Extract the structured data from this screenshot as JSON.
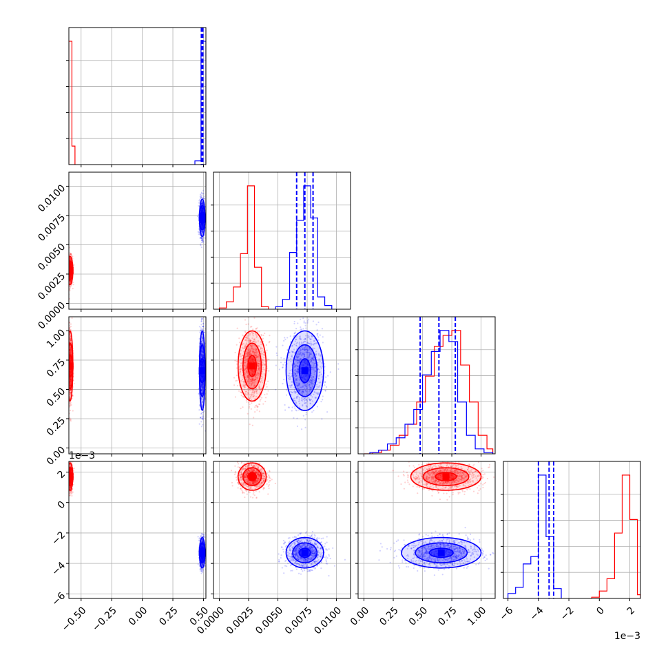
{
  "figure": {
    "type": "corner-plot",
    "description_colors": {
      "series_a": "#ff0000",
      "series_b": "#0000ff",
      "grid": "#b0b0b0",
      "frame": "#000000"
    }
  },
  "chart_data": {
    "type": "corner",
    "parameters": [
      {
        "id": "p0",
        "range": [
          -0.6,
          0.52
        ],
        "ticks": [
          -0.5,
          -0.25,
          0.0,
          0.25,
          0.5
        ],
        "tick_labels": [
          "−0.50",
          "−0.25",
          "0.00",
          "0.25",
          "0.50"
        ]
      },
      {
        "id": "p1",
        "range": [
          -0.0005,
          0.0112
        ],
        "ticks": [
          0.0,
          0.0025,
          0.005,
          0.0075,
          0.01
        ],
        "tick_labels": [
          "0.0000",
          "0.0025",
          "0.0050",
          "0.0075",
          "0.0100"
        ]
      },
      {
        "id": "p2",
        "range": [
          -0.05,
          1.12
        ],
        "ticks": [
          0.0,
          0.25,
          0.5,
          0.75,
          1.0
        ],
        "tick_labels": [
          "0.00",
          "0.25",
          "0.50",
          "0.75",
          "1.00"
        ]
      },
      {
        "id": "p3",
        "range": [
          -6.3,
          2.7
        ],
        "ticks": [
          -6,
          -4,
          -2,
          0,
          2
        ],
        "tick_labels": [
          "−6",
          "−4",
          "−2",
          "0",
          "2"
        ],
        "offset_text": "1e−3"
      }
    ],
    "series": [
      {
        "color": "#ff0000",
        "means": [
          -0.59,
          0.0028,
          0.7,
          1.7
        ],
        "stds": [
          0.01,
          0.0006,
          0.15,
          0.45
        ],
        "hist": [
          {
            "edges": [
              -0.6,
              -0.575,
              -0.55
            ],
            "counts": [
              1.0,
              0.15
            ]
          },
          {
            "edges": [
              0.0,
              0.0006,
              0.0012,
              0.0018,
              0.0024,
              0.003,
              0.0036,
              0.0042
            ],
            "counts": [
              0.01,
              0.06,
              0.18,
              0.45,
              1.0,
              0.34,
              0.02
            ]
          },
          {
            "edges": [
              0.0,
              0.075,
              0.15,
              0.225,
              0.3,
              0.375,
              0.45,
              0.525,
              0.6,
              0.675,
              0.75,
              0.825,
              0.9,
              0.975,
              1.05,
              1.1
            ],
            "counts": [
              0.0,
              0.01,
              0.03,
              0.07,
              0.15,
              0.24,
              0.42,
              0.63,
              0.87,
              0.96,
              1.0,
              0.72,
              0.42,
              0.15,
              0.04
            ]
          },
          {
            "edges": [
              -0.5,
              0.0,
              0.5,
              1.0,
              1.5,
              2.0,
              2.5,
              2.7
            ],
            "counts": [
              0.01,
              0.06,
              0.16,
              0.53,
              1.0,
              0.64,
              0.03
            ]
          }
        ]
      },
      {
        "color": "#0000ff",
        "means": [
          0.49,
          0.0073,
          0.66,
          -3.3
        ],
        "stds": [
          0.01,
          0.0008,
          0.17,
          0.5
        ],
        "quantile_lines": [
          [
            0.483,
            0.49,
            0.495
          ],
          [
            0.0066,
            0.0073,
            0.008
          ],
          [
            0.48,
            0.64,
            0.78
          ],
          [
            -4.0,
            -3.3,
            -3.0
          ]
        ],
        "hist": [
          {
            "edges": [
              0.43,
              0.48,
              0.5,
              0.52
            ],
            "counts": [
              0.03,
              1.0,
              1.0
            ]
          },
          {
            "edges": [
              0.0048,
              0.0054,
              0.006,
              0.0066,
              0.0072,
              0.0078,
              0.0084,
              0.009,
              0.0096
            ],
            "counts": [
              0.02,
              0.08,
              0.46,
              0.72,
              1.0,
              0.74,
              0.1,
              0.03
            ]
          },
          {
            "edges": [
              0.05,
              0.125,
              0.2,
              0.275,
              0.35,
              0.425,
              0.5,
              0.575,
              0.65,
              0.725,
              0.8,
              0.875,
              0.95,
              1.025,
              1.1
            ],
            "counts": [
              0.01,
              0.03,
              0.08,
              0.13,
              0.24,
              0.36,
              0.64,
              0.83,
              1.0,
              0.91,
              0.42,
              0.15,
              0.04,
              0.01
            ]
          },
          {
            "edges": [
              -6.0,
              -5.5,
              -5.0,
              -4.5,
              -4.0,
              -3.5,
              -3.0,
              -2.5
            ],
            "counts": [
              0.04,
              0.09,
              0.28,
              0.34,
              1.0,
              0.5,
              0.08
            ]
          }
        ]
      }
    ]
  }
}
